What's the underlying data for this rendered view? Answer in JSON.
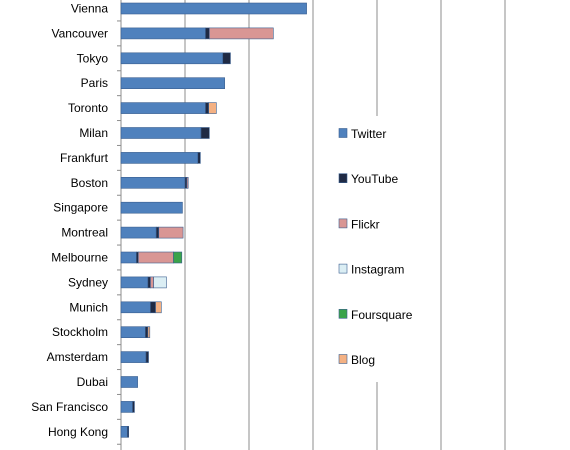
{
  "chart_data": {
    "type": "bar",
    "orientation": "horizontal",
    "stacked": true,
    "categories": [
      "Vienna",
      "Vancouver",
      "Tokyo",
      "Paris",
      "Toronto",
      "Milan",
      "Frankfurt",
      "Boston",
      "Singapore",
      "Montreal",
      "Melbourne",
      "Sydney",
      "Munich",
      "Stockholm",
      "Amsterdam",
      "Dubai",
      "San Francisco",
      "Hong Kong"
    ],
    "series": [
      {
        "name": "Twitter",
        "color": "#4f81bd",
        "values": [
          29,
          13.2,
          15.9,
          16.2,
          13.2,
          12.5,
          12,
          10,
          9.6,
          5.5,
          2.4,
          4.2,
          4.6,
          3.8,
          3.9,
          2.6,
          1.8,
          1.0
        ]
      },
      {
        "name": "YouTube",
        "color": "#1f2a44",
        "values": [
          0,
          0.6,
          1.2,
          0,
          0.5,
          1.3,
          0.4,
          0.3,
          0,
          0.4,
          0.3,
          0.4,
          0.8,
          0.4,
          0.4,
          0,
          0.3,
          0.2
        ]
      },
      {
        "name": "Flickr",
        "color": "#d99694",
        "values": [
          0,
          10,
          0,
          0,
          0,
          0,
          0,
          0.2,
          0,
          3.8,
          5.5,
          0.5,
          0,
          0,
          0,
          0,
          0,
          0
        ]
      },
      {
        "name": "Instagram",
        "color": "#dbeef4",
        "values": [
          0,
          0,
          0,
          0,
          0,
          0,
          0,
          0,
          0,
          0,
          0,
          2.0,
          0,
          0,
          0,
          0,
          0,
          0
        ]
      },
      {
        "name": "Foursquare",
        "color": "#3aa34a",
        "values": [
          0,
          0,
          0,
          0,
          0,
          0,
          0,
          0,
          0,
          0,
          1.3,
          0,
          0,
          0,
          0,
          0,
          0,
          0
        ]
      },
      {
        "name": "Blog",
        "color": "#f4b183",
        "values": [
          0,
          0,
          0,
          0,
          1.2,
          0,
          0,
          0,
          0,
          0,
          0,
          0,
          0.9,
          0.3,
          0,
          0,
          0,
          0
        ]
      }
    ],
    "xlim": [
      0,
      70
    ],
    "grid": true,
    "legend_position": "right",
    "title": "",
    "xlabel": "",
    "ylabel": ""
  }
}
